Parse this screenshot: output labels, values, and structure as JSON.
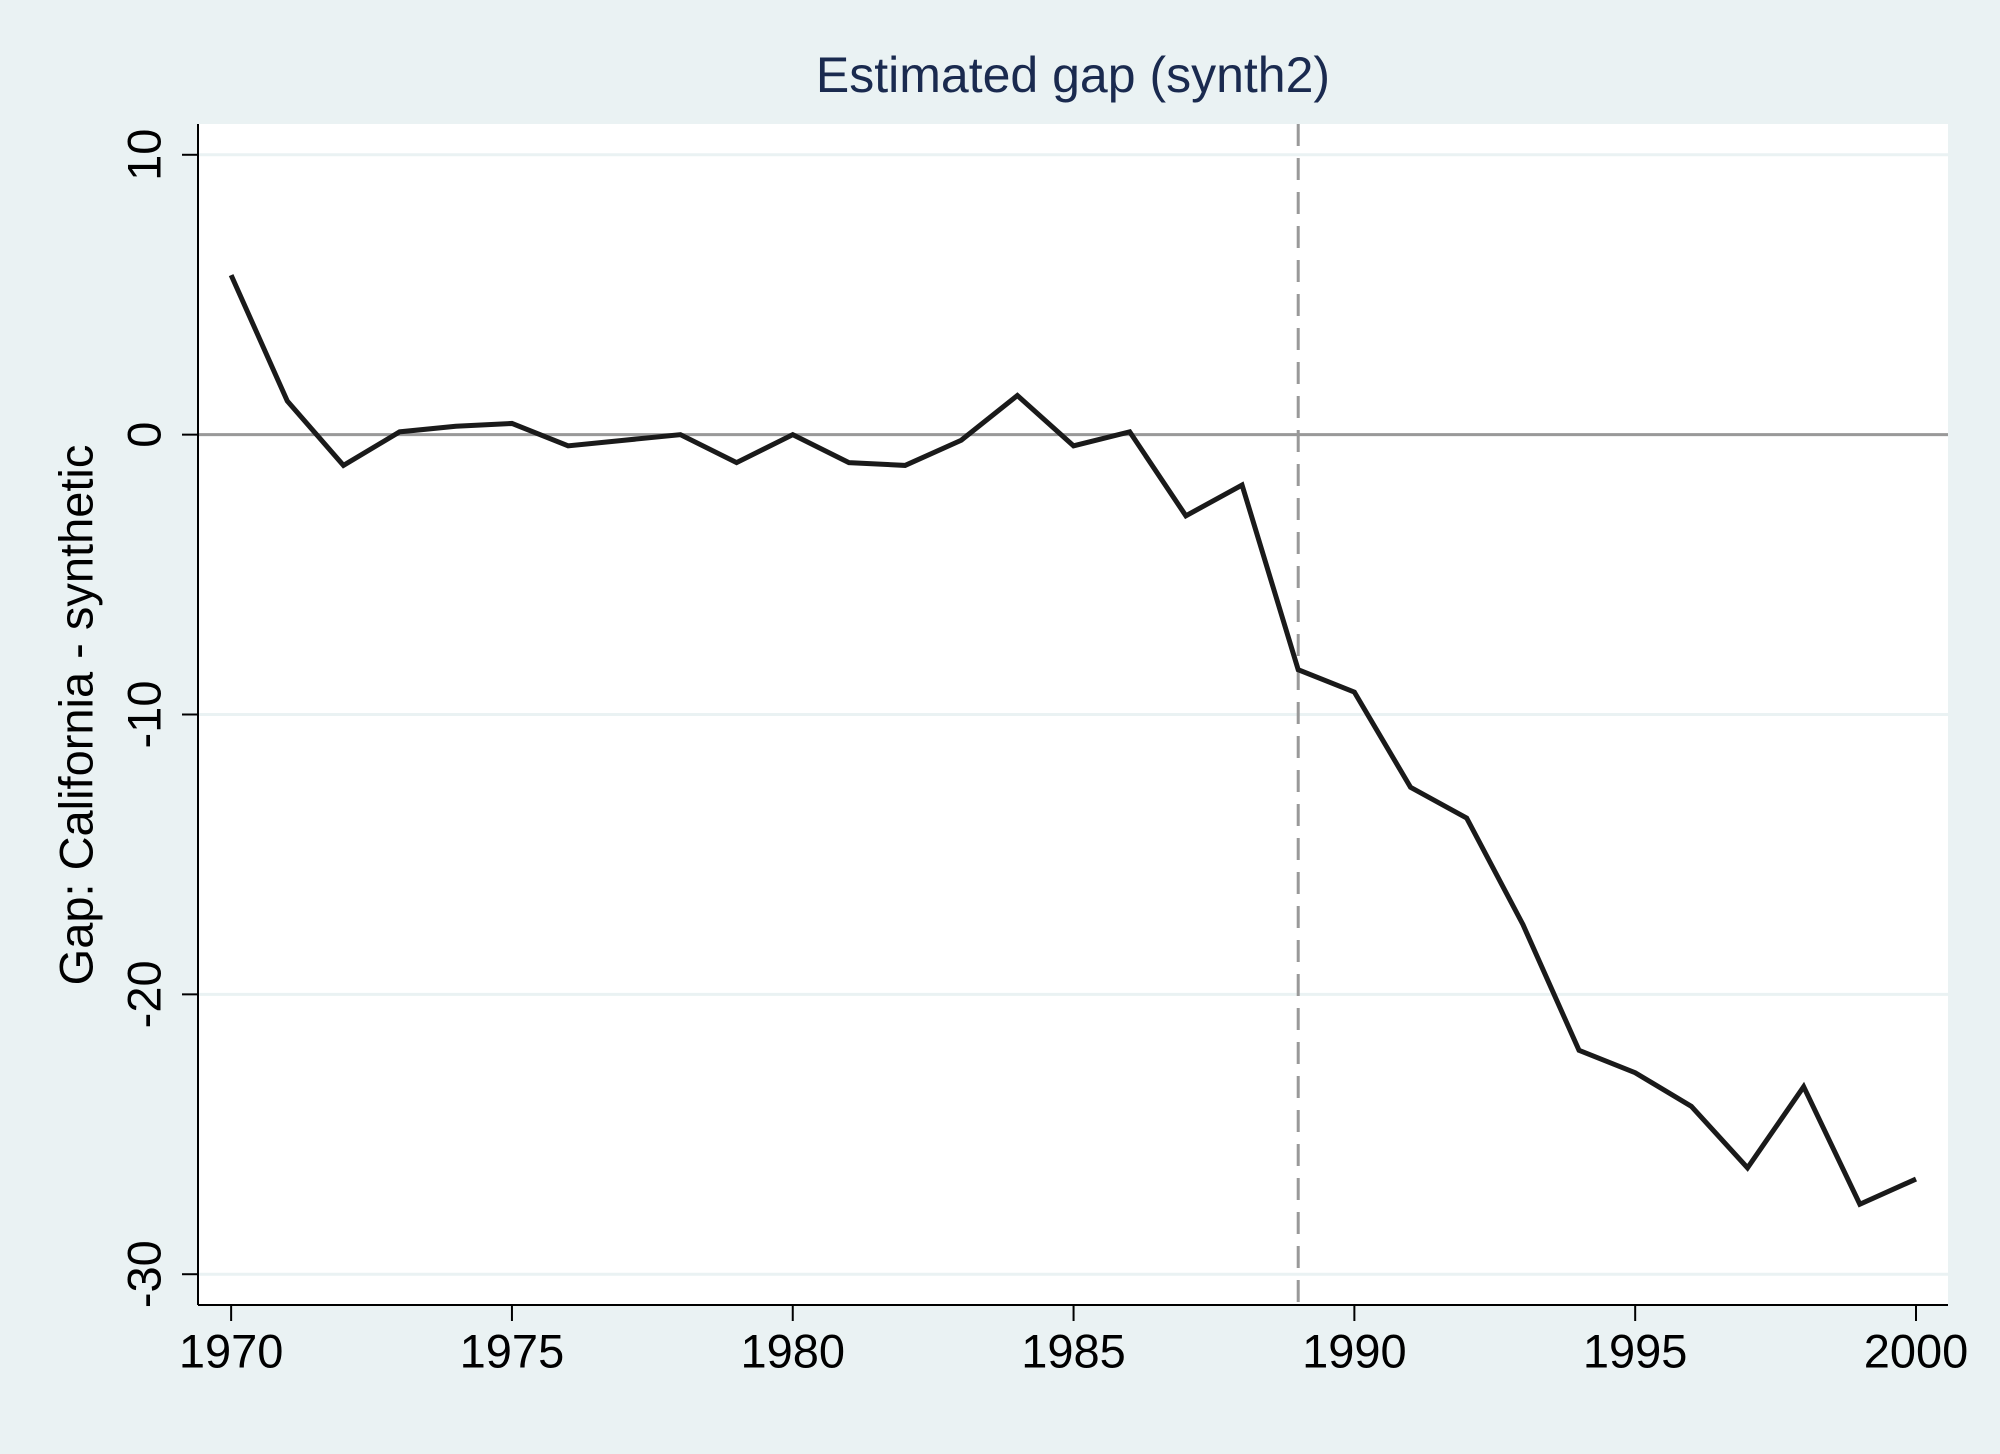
{
  "chart_data": {
    "type": "line",
    "title": "Estimated gap (synth2)",
    "y_label": "Gap: California - synthetic",
    "x": [
      1970,
      1971,
      1972,
      1973,
      1974,
      1975,
      1976,
      1977,
      1978,
      1979,
      1980,
      1981,
      1982,
      1983,
      1984,
      1985,
      1986,
      1987,
      1988,
      1989,
      1990,
      1991,
      1992,
      1993,
      1994,
      1995,
      1996,
      1997,
      1998,
      1999,
      2000
    ],
    "series": [
      {
        "color": "#1a1a1a",
        "values": [
          5.7,
          1.2,
          -1.1,
          0.1,
          0.3,
          0.4,
          -0.4,
          -0.2,
          0,
          -1.0,
          0,
          -1.0,
          -1.1,
          -0.2,
          1.4,
          -0.4,
          0.1,
          -2.9,
          -1.8,
          -8.4,
          -9.2,
          -12.6,
          -13.7,
          -17.5,
          -22.0,
          -22.8,
          -24.0,
          -26.2,
          -23.3,
          -27.5,
          -26.6
        ]
      }
    ],
    "xlim": [
      1969.41,
      2000.57
    ],
    "ylim": [
      -31.1,
      11.1
    ],
    "xticks": [
      1970,
      1975,
      1980,
      1985,
      1990,
      1995,
      2000
    ],
    "yticks": [
      -30,
      -20,
      -10,
      0,
      10
    ],
    "vline": 1989,
    "hline": 0,
    "grid": true
  }
}
